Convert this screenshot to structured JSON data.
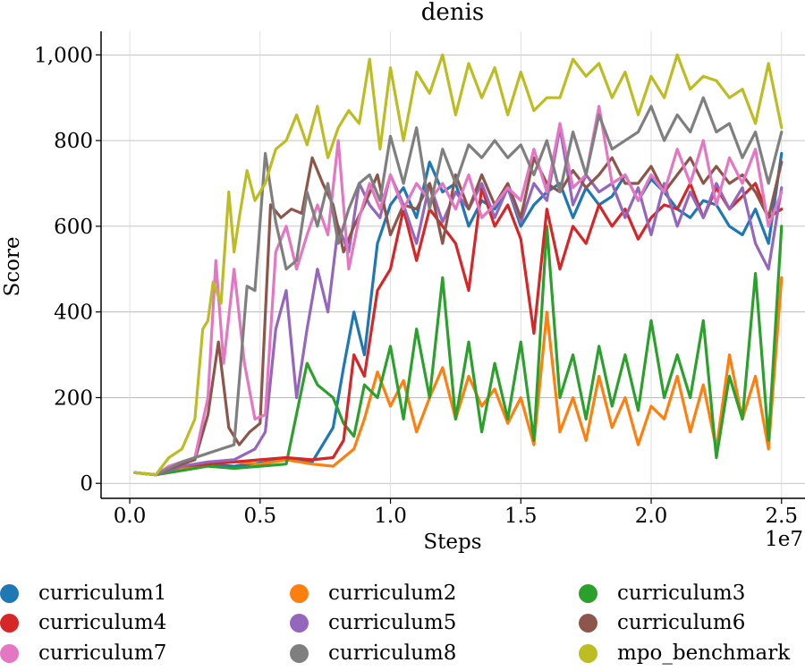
{
  "chart_data": {
    "type": "line",
    "title": "denis",
    "xlabel": "Steps",
    "ylabel": "Score",
    "x_offset_label": "1e7",
    "xlim": [
      -0.11,
      2.59
    ],
    "ylim": [
      -35,
      1055
    ],
    "xticks": [
      0.0,
      0.5,
      1.0,
      1.5,
      2.0,
      2.5
    ],
    "xtick_labels": [
      "0.0",
      "0.5",
      "1.0",
      "1.5",
      "2.0",
      "2.5"
    ],
    "yticks": [
      0,
      200,
      400,
      600,
      800,
      1000
    ],
    "ytick_labels": [
      "0",
      "200",
      "400",
      "600",
      "800",
      "1,000"
    ],
    "grid": true,
    "legend_position": "bottom",
    "series": [
      {
        "name": "curriculum1",
        "color": "#1f77b4",
        "x": [
          0.02,
          0.1,
          0.2,
          0.3,
          0.4,
          0.5,
          0.6,
          0.7,
          0.78,
          0.82,
          0.86,
          0.9,
          0.95,
          1.0,
          1.05,
          1.1,
          1.15,
          1.2,
          1.25,
          1.3,
          1.35,
          1.4,
          1.45,
          1.5,
          1.55,
          1.6,
          1.65,
          1.7,
          1.75,
          1.8,
          1.85,
          1.9,
          1.95,
          2.0,
          2.05,
          2.1,
          2.15,
          2.2,
          2.25,
          2.3,
          2.35,
          2.4,
          2.45,
          2.5
        ],
        "y": [
          25,
          20,
          35,
          45,
          40,
          48,
          55,
          50,
          130,
          270,
          400,
          300,
          560,
          650,
          690,
          620,
          750,
          680,
          700,
          600,
          660,
          640,
          690,
          600,
          650,
          680,
          700,
          620,
          690,
          650,
          670,
          720,
          660,
          710,
          680,
          640,
          620,
          660,
          650,
          600,
          580,
          640,
          560,
          770
        ]
      },
      {
        "name": "curriculum2",
        "color": "#ff7f0e",
        "x": [
          0.02,
          0.1,
          0.2,
          0.3,
          0.4,
          0.5,
          0.6,
          0.7,
          0.78,
          0.82,
          0.86,
          0.9,
          0.95,
          1.0,
          1.05,
          1.1,
          1.15,
          1.2,
          1.25,
          1.3,
          1.35,
          1.4,
          1.45,
          1.5,
          1.55,
          1.6,
          1.65,
          1.7,
          1.75,
          1.8,
          1.85,
          1.9,
          1.95,
          2.0,
          2.05,
          2.1,
          2.15,
          2.2,
          2.25,
          2.3,
          2.35,
          2.4,
          2.45,
          2.5
        ],
        "y": [
          25,
          20,
          35,
          45,
          50,
          45,
          55,
          45,
          40,
          60,
          80,
          150,
          260,
          180,
          240,
          120,
          200,
          270,
          150,
          250,
          180,
          220,
          140,
          200,
          90,
          400,
          120,
          200,
          100,
          250,
          130,
          200,
          90,
          180,
          150,
          250,
          120,
          230,
          80,
          300,
          150,
          250,
          80,
          480
        ]
      },
      {
        "name": "curriculum3",
        "color": "#2ca02c",
        "x": [
          0.02,
          0.1,
          0.2,
          0.3,
          0.4,
          0.5,
          0.6,
          0.68,
          0.72,
          0.78,
          0.82,
          0.86,
          0.9,
          0.95,
          1.0,
          1.05,
          1.1,
          1.15,
          1.2,
          1.25,
          1.3,
          1.35,
          1.4,
          1.45,
          1.5,
          1.55,
          1.6,
          1.65,
          1.7,
          1.75,
          1.8,
          1.85,
          1.9,
          1.95,
          2.0,
          2.05,
          2.1,
          2.15,
          2.2,
          2.25,
          2.3,
          2.35,
          2.4,
          2.45,
          2.5
        ],
        "y": [
          25,
          20,
          30,
          40,
          35,
          40,
          45,
          280,
          230,
          200,
          140,
          110,
          230,
          200,
          320,
          150,
          360,
          200,
          480,
          150,
          330,
          120,
          280,
          150,
          330,
          100,
          600,
          200,
          300,
          150,
          320,
          180,
          300,
          170,
          380,
          200,
          300,
          200,
          380,
          60,
          250,
          150,
          490,
          100,
          600
        ]
      },
      {
        "name": "curriculum4",
        "color": "#d62728",
        "x": [
          0.02,
          0.1,
          0.2,
          0.3,
          0.4,
          0.5,
          0.6,
          0.7,
          0.78,
          0.82,
          0.86,
          0.9,
          0.95,
          1.0,
          1.05,
          1.1,
          1.15,
          1.2,
          1.25,
          1.3,
          1.35,
          1.4,
          1.45,
          1.5,
          1.55,
          1.6,
          1.65,
          1.7,
          1.75,
          1.8,
          1.85,
          1.9,
          1.95,
          2.0,
          2.05,
          2.1,
          2.15,
          2.2,
          2.25,
          2.3,
          2.35,
          2.4,
          2.45,
          2.5
        ],
        "y": [
          25,
          20,
          40,
          45,
          50,
          55,
          60,
          55,
          60,
          100,
          300,
          250,
          450,
          500,
          640,
          520,
          640,
          600,
          560,
          450,
          690,
          600,
          650,
          570,
          350,
          640,
          500,
          600,
          560,
          650,
          600,
          640,
          570,
          620,
          650,
          640,
          700,
          620,
          690,
          640,
          670,
          700,
          620,
          640
        ]
      },
      {
        "name": "curriculum5",
        "color": "#9467bd",
        "x": [
          0.02,
          0.1,
          0.2,
          0.3,
          0.4,
          0.48,
          0.52,
          0.56,
          0.6,
          0.64,
          0.68,
          0.72,
          0.76,
          0.8,
          0.84,
          0.88,
          0.92,
          0.96,
          1.0,
          1.05,
          1.1,
          1.15,
          1.2,
          1.25,
          1.3,
          1.35,
          1.4,
          1.45,
          1.5,
          1.55,
          1.6,
          1.65,
          1.7,
          1.75,
          1.8,
          1.85,
          1.9,
          1.95,
          2.0,
          2.05,
          2.1,
          2.15,
          2.2,
          2.25,
          2.3,
          2.35,
          2.4,
          2.45,
          2.5
        ],
        "y": [
          25,
          20,
          40,
          50,
          55,
          80,
          120,
          360,
          450,
          200,
          360,
          500,
          400,
          600,
          540,
          700,
          650,
          620,
          720,
          650,
          560,
          700,
          610,
          680,
          640,
          700,
          620,
          690,
          610,
          700,
          660,
          830,
          650,
          720,
          680,
          700,
          620,
          690,
          580,
          700,
          600,
          680,
          620,
          700,
          640,
          690,
          560,
          500,
          690
        ]
      },
      {
        "name": "curriculum6",
        "color": "#8c564b",
        "x": [
          0.02,
          0.1,
          0.2,
          0.25,
          0.3,
          0.34,
          0.38,
          0.42,
          0.46,
          0.5,
          0.54,
          0.58,
          0.62,
          0.66,
          0.7,
          0.74,
          0.78,
          0.82,
          0.86,
          0.9,
          0.95,
          1.0,
          1.05,
          1.1,
          1.15,
          1.2,
          1.25,
          1.3,
          1.35,
          1.4,
          1.45,
          1.5,
          1.55,
          1.6,
          1.65,
          1.7,
          1.75,
          1.8,
          1.85,
          1.9,
          1.95,
          2.0,
          2.05,
          2.1,
          2.15,
          2.2,
          2.25,
          2.3,
          2.35,
          2.4,
          2.45,
          2.5
        ],
        "y": [
          25,
          20,
          45,
          55,
          160,
          330,
          130,
          90,
          120,
          140,
          650,
          620,
          640,
          630,
          760,
          700,
          650,
          540,
          600,
          650,
          720,
          580,
          650,
          640,
          700,
          560,
          720,
          640,
          720,
          650,
          700,
          620,
          760,
          700,
          680,
          730,
          690,
          720,
          760,
          700,
          700,
          740,
          680,
          720,
          760,
          700,
          740,
          700,
          720,
          680,
          620,
          750
        ]
      },
      {
        "name": "curriculum7",
        "color": "#e377c2",
        "x": [
          0.02,
          0.1,
          0.15,
          0.2,
          0.25,
          0.3,
          0.33,
          0.36,
          0.4,
          0.44,
          0.48,
          0.52,
          0.56,
          0.6,
          0.64,
          0.68,
          0.72,
          0.76,
          0.8,
          0.84,
          0.88,
          0.92,
          0.96,
          1.0,
          1.05,
          1.1,
          1.15,
          1.2,
          1.25,
          1.3,
          1.35,
          1.4,
          1.45,
          1.5,
          1.55,
          1.6,
          1.65,
          1.7,
          1.75,
          1.8,
          1.85,
          1.9,
          1.95,
          2.0,
          2.05,
          2.1,
          2.15,
          2.2,
          2.25,
          2.3,
          2.35,
          2.4,
          2.45,
          2.5
        ],
        "y": [
          25,
          20,
          40,
          50,
          60,
          200,
          520,
          280,
          500,
          280,
          150,
          160,
          540,
          600,
          500,
          580,
          650,
          580,
          800,
          500,
          620,
          700,
          640,
          720,
          640,
          700,
          660,
          700,
          640,
          720,
          620,
          650,
          690,
          660,
          780,
          680,
          840,
          690,
          720,
          880,
          700,
          720,
          660,
          720,
          680,
          780,
          700,
          800,
          650,
          760,
          700,
          780,
          600,
          680
        ]
      },
      {
        "name": "curriculum8",
        "color": "#7f7f7f",
        "x": [
          0.02,
          0.1,
          0.2,
          0.3,
          0.35,
          0.4,
          0.45,
          0.48,
          0.52,
          0.56,
          0.6,
          0.64,
          0.68,
          0.72,
          0.76,
          0.8,
          0.84,
          0.88,
          0.92,
          0.96,
          1.0,
          1.05,
          1.1,
          1.15,
          1.2,
          1.25,
          1.3,
          1.35,
          1.4,
          1.45,
          1.5,
          1.55,
          1.6,
          1.65,
          1.7,
          1.75,
          1.8,
          1.85,
          1.9,
          1.95,
          2.0,
          2.05,
          2.1,
          2.15,
          2.2,
          2.25,
          2.3,
          2.35,
          2.4,
          2.45,
          2.5
        ],
        "y": [
          25,
          20,
          50,
          70,
          80,
          90,
          460,
          450,
          770,
          610,
          500,
          520,
          680,
          600,
          700,
          560,
          640,
          700,
          720,
          660,
          810,
          700,
          830,
          640,
          780,
          700,
          790,
          760,
          800,
          760,
          790,
          720,
          800,
          680,
          820,
          720,
          860,
          780,
          800,
          820,
          880,
          800,
          860,
          820,
          900,
          820,
          840,
          760,
          820,
          700,
          820
        ]
      },
      {
        "name": "mpo_benchmark",
        "color": "#bcbd22",
        "x": [
          0.02,
          0.1,
          0.15,
          0.2,
          0.25,
          0.28,
          0.3,
          0.32,
          0.35,
          0.38,
          0.4,
          0.42,
          0.45,
          0.48,
          0.52,
          0.56,
          0.6,
          0.64,
          0.68,
          0.72,
          0.76,
          0.8,
          0.84,
          0.88,
          0.92,
          0.96,
          1.0,
          1.05,
          1.1,
          1.15,
          1.2,
          1.25,
          1.3,
          1.35,
          1.4,
          1.45,
          1.5,
          1.55,
          1.6,
          1.65,
          1.7,
          1.75,
          1.8,
          1.85,
          1.9,
          1.95,
          2.0,
          2.05,
          2.1,
          2.15,
          2.2,
          2.25,
          2.3,
          2.35,
          2.4,
          2.45,
          2.5
        ],
        "y": [
          25,
          20,
          60,
          80,
          150,
          360,
          380,
          470,
          420,
          680,
          540,
          620,
          730,
          660,
          700,
          780,
          800,
          860,
          790,
          880,
          760,
          830,
          870,
          840,
          990,
          780,
          970,
          800,
          960,
          910,
          1000,
          860,
          980,
          900,
          970,
          860,
          960,
          870,
          900,
          900,
          990,
          950,
          980,
          900,
          960,
          860,
          950,
          900,
          1000,
          920,
          950,
          940,
          900,
          920,
          840,
          980,
          830
        ]
      }
    ]
  }
}
